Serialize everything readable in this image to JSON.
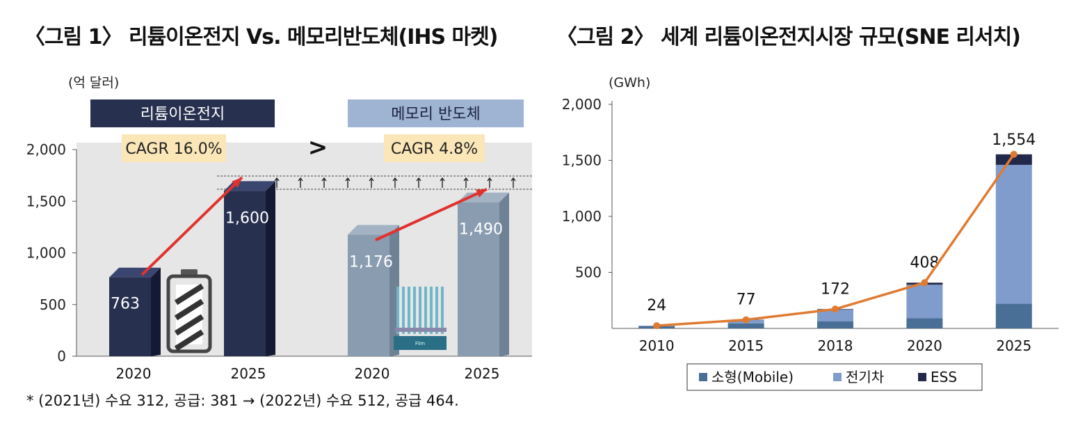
{
  "titles": {
    "fig1": "〈그림 1〉 리튬이온전지 Vs. 메모리반도체(IHS 마켓)",
    "fig2": "〈그림 2〉 세계 리튬이온전지시장 규모(SNE 리서치)"
  },
  "footnote": "* (2021년) 수요 312, 공급: 381 → (2022년) 수요 512, 공급 464.",
  "colors": {
    "li_bar": "#27304f",
    "mem_bar": "#8a9cb0",
    "arrow": "#e0322e",
    "label_gold": "#fbe6b8",
    "mobile": "#4a6f96",
    "ev": "#7f9ccc",
    "ess": "#22284a",
    "line": "#e07a30"
  },
  "chart_data": [
    {
      "type": "bar",
      "title": "",
      "ylabel": "(억 달러)",
      "ylim": [
        0,
        2000
      ],
      "yticks": [
        "0",
        "500",
        "1,000",
        "1,500",
        "2,000"
      ],
      "groups": [
        {
          "name": "리튬이온전지",
          "cagr": "CAGR 16.0%",
          "categories": [
            "2020",
            "2025"
          ],
          "values": [
            763,
            1600
          ],
          "value_labels": [
            "763",
            "1,600"
          ]
        },
        {
          "name": "메모리 반도체",
          "cagr": "CAGR 4.8%",
          "categories": [
            "2020",
            "2025"
          ],
          "values": [
            1176,
            1490
          ],
          "value_labels": [
            "1,176",
            "1,490"
          ]
        }
      ],
      "comparison": ">",
      "band_note": "Film"
    },
    {
      "type": "bar",
      "stacked": true,
      "ylabel": "(GWh)",
      "ylim": [
        0,
        2000
      ],
      "yticks": [
        "500",
        "1,000",
        "1,500",
        "2,000"
      ],
      "categories": [
        "2010",
        "2015",
        "2018",
        "2020",
        "2025"
      ],
      "series": [
        {
          "name": "소형(Mobile)",
          "values": [
            20,
            45,
            62,
            90,
            220
          ]
        },
        {
          "name": "전기차",
          "values": [
            3,
            30,
            105,
            300,
            1240
          ]
        },
        {
          "name": "ESS",
          "values": [
            1,
            2,
            5,
            18,
            94
          ]
        }
      ],
      "totals": [
        24,
        77,
        172,
        408,
        1554
      ],
      "total_labels": [
        "24",
        "77",
        "172",
        "408",
        "1,554"
      ],
      "line": {
        "values": [
          24,
          77,
          172,
          408,
          1554
        ]
      },
      "legend": "bottom"
    }
  ]
}
